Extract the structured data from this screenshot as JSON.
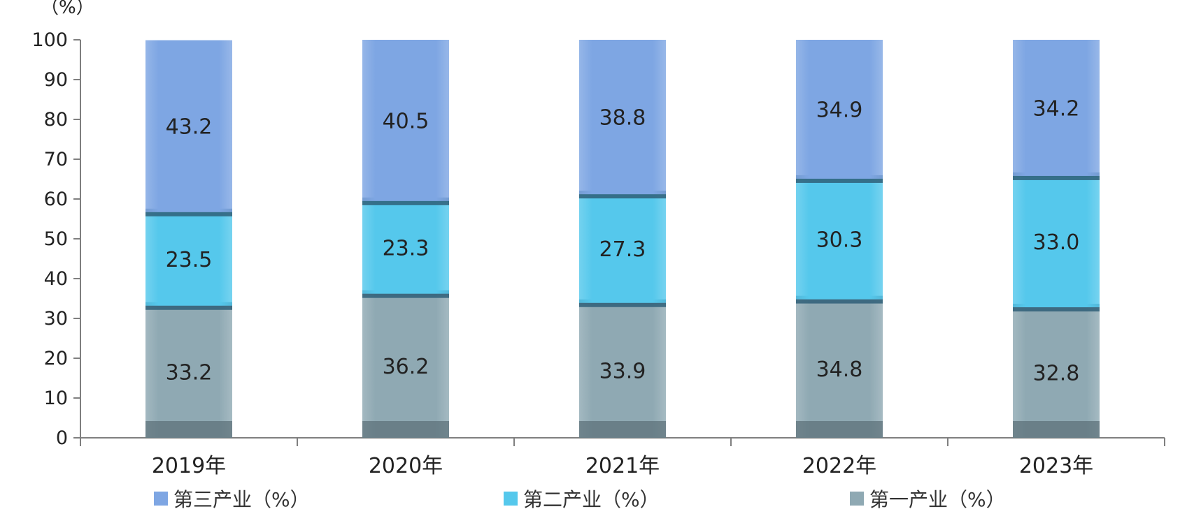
{
  "chart_data": {
    "type": "bar",
    "stacked": true,
    "unit_label": "（%）",
    "categories": [
      "2019年",
      "2020年",
      "2021年",
      "2022年",
      "2023年"
    ],
    "series": [
      {
        "name": "第一产业（%）",
        "values": [
          33.2,
          36.2,
          33.9,
          34.8,
          32.8
        ],
        "color": "#8fa9b3"
      },
      {
        "name": "第二产业（%）",
        "values": [
          23.5,
          23.3,
          27.3,
          30.3,
          33.0
        ],
        "color": "#55c8ec"
      },
      {
        "name": "第三产业（%）",
        "values": [
          43.2,
          40.5,
          38.8,
          34.9,
          34.2
        ],
        "color": "#7ea6e3"
      }
    ],
    "legend_order": [
      "第三产业（%）",
      "第二产业（%）",
      "第一产业（%）"
    ],
    "ylim": [
      0,
      100
    ],
    "yticks": [
      0,
      10,
      20,
      30,
      40,
      50,
      60,
      70,
      80,
      90,
      100
    ],
    "legend_position": "bottom",
    "grid": false,
    "separator_color": "#2f5f78",
    "axis_color": "#7f7f7f",
    "label_color": "#222222"
  }
}
